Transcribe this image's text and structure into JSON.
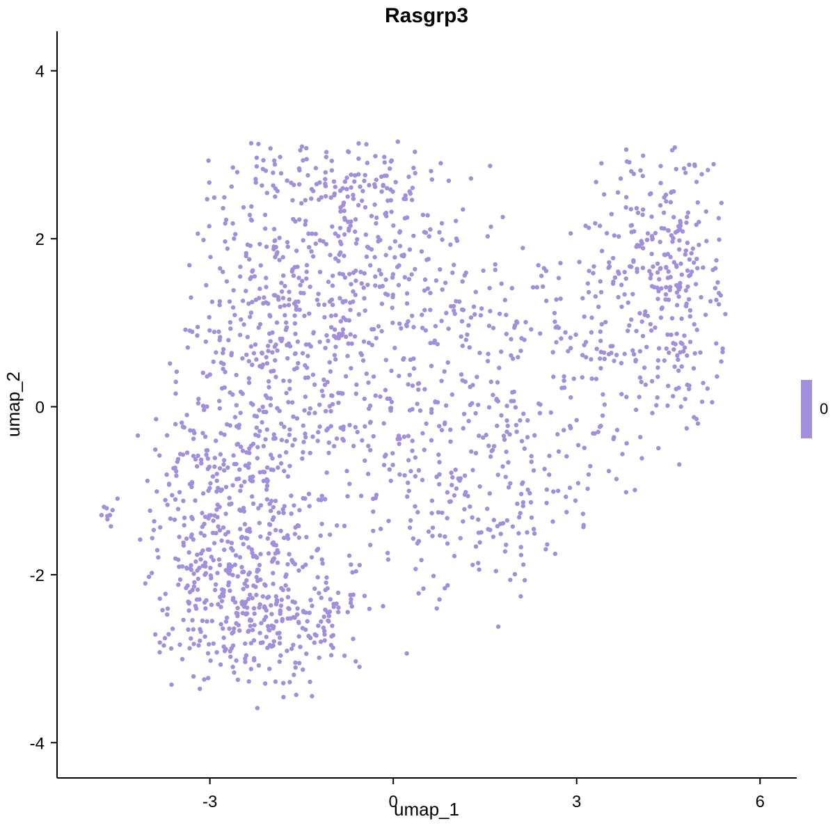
{
  "chart_data": {
    "type": "scatter",
    "title": "Rasgrp3",
    "xlabel": "umap_1",
    "ylabel": "umap_2",
    "xlim": [
      -5.5,
      6.6
    ],
    "ylim": [
      -4.42,
      4.47
    ],
    "x_ticks": [
      -3,
      0,
      3,
      6
    ],
    "y_ticks": [
      -4,
      -2,
      0,
      2,
      4
    ],
    "grid": false,
    "point_color": "#a18fdd",
    "point_radius": 3.2,
    "legend": {
      "label": "0",
      "color": "#a18fdd",
      "position": "right"
    },
    "point_cloud": {
      "description": "UMAP embedding of single cells, all colored at expression level 0; shape estimated from plot",
      "seed": 1337,
      "clusters": [
        {
          "cx": -2.6,
          "cy": -2.2,
          "sx": 0.75,
          "sy": 0.55,
          "n": 320
        },
        {
          "cx": -1.6,
          "cy": -2.6,
          "sx": 0.7,
          "sy": 0.45,
          "n": 150
        },
        {
          "cx": -2.7,
          "cy": -0.9,
          "sx": 0.6,
          "sy": 0.55,
          "n": 180
        },
        {
          "cx": -2.2,
          "cy": 0.8,
          "sx": 0.7,
          "sy": 0.85,
          "n": 240
        },
        {
          "cx": -0.9,
          "cy": 0.2,
          "sx": 0.9,
          "sy": 1.0,
          "n": 230
        },
        {
          "cx": -0.6,
          "cy": 1.9,
          "sx": 1.0,
          "sy": 0.55,
          "n": 200
        },
        {
          "cx": -0.9,
          "cy": 2.7,
          "sx": 0.9,
          "sy": 0.25,
          "n": 90
        },
        {
          "cx": 0.8,
          "cy": -0.9,
          "sx": 0.8,
          "sy": 0.8,
          "n": 140
        },
        {
          "cx": 1.3,
          "cy": 0.8,
          "sx": 0.7,
          "sy": 0.7,
          "n": 110
        },
        {
          "cx": 2.0,
          "cy": -1.5,
          "sx": 0.5,
          "sy": 0.4,
          "n": 40
        },
        {
          "cx": 2.8,
          "cy": -0.3,
          "sx": 0.7,
          "sy": 0.9,
          "n": 110
        },
        {
          "cx": 3.6,
          "cy": 1.2,
          "sx": 0.7,
          "sy": 0.8,
          "n": 120
        },
        {
          "cx": 4.6,
          "cy": 2.0,
          "sx": 0.5,
          "sy": 0.6,
          "n": 170
        },
        {
          "cx": 4.9,
          "cy": 0.6,
          "sx": 0.35,
          "sy": 0.6,
          "n": 60
        },
        {
          "cx": -4.62,
          "cy": -1.25,
          "sx": 0.07,
          "sy": 0.1,
          "n": 9,
          "noclip": true
        }
      ]
    }
  }
}
